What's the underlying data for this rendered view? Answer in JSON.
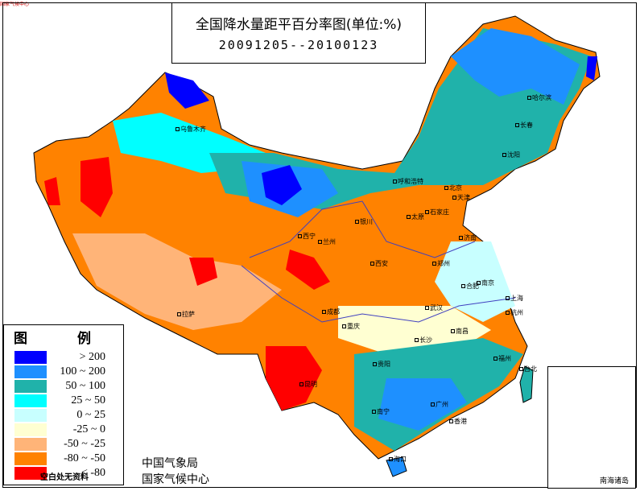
{
  "header_stamp": "国家气候中心",
  "title": "全国降水量距平百分率图(单位:%)",
  "period": "20091205--20100123",
  "legend": {
    "title": "图 例",
    "items": [
      {
        "label": "> 200",
        "color": "#0000ff"
      },
      {
        "label": "100 ~ 200",
        "color": "#1e90ff"
      },
      {
        "label": "50 ~ 100",
        "color": "#20b2aa"
      },
      {
        "label": "25 ~ 50",
        "color": "#00ffff"
      },
      {
        "label": "0 ~ 25",
        "color": "#c8ffff"
      },
      {
        "label": "-25 ~ 0",
        "color": "#ffffd2"
      },
      {
        "label": "-50 ~ -25",
        "color": "#ffb478"
      },
      {
        "label": "-80 ~ -50",
        "color": "#ff8200"
      },
      {
        "label": "< -80",
        "color": "#ff0000"
      }
    ],
    "no_data": "空白处无资料"
  },
  "agency": [
    "中国气象局",
    "国家气候中心"
  ],
  "inset_label": "南海诸岛",
  "cities": {
    "urumqi": "乌鲁木齐",
    "harbin": "哈尔滨",
    "changchun": "长春",
    "shenyang": "沈阳",
    "hohhot": "呼和浩特",
    "beijing": "北京",
    "tianjin": "天津",
    "yinchuan": "银川",
    "taiyuan": "太原",
    "shijiazhuang": "石家庄",
    "jinan": "济南",
    "xining": "西宁",
    "lanzhou": "兰州",
    "zhengzhou": "郑州",
    "xian": "西安",
    "hefei": "合肥",
    "nanjing": "南京",
    "shanghai": "上海",
    "lhasa": "拉萨",
    "chengdu": "成都",
    "wuhan": "武汉",
    "hangzhou": "杭州",
    "chongqing": "重庆",
    "nanchang": "南昌",
    "changsha": "长沙",
    "fuzhou": "福州",
    "guiyang": "贵阳",
    "taipei": "台北",
    "kunming": "昆明",
    "nanning": "南宁",
    "guangzhou": "广州",
    "hongkong": "香港",
    "haikou": "海口"
  }
}
